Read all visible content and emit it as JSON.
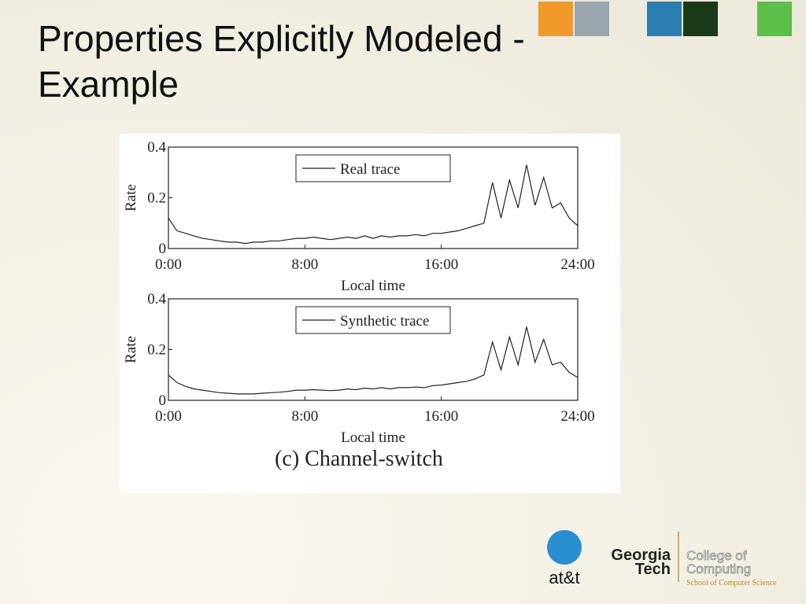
{
  "title": "Properties Explicitly Modeled - Example",
  "figure_caption": "(c) Channel-switch",
  "logos": {
    "att": "at&t",
    "gt_line1": "Georgia",
    "gt_line2": "Tech",
    "coc_line1": "College of",
    "coc_line2": "Computing",
    "scs": "School of Computer Science"
  },
  "chart_data": [
    {
      "type": "line",
      "xlabel": "Local time",
      "ylabel": "Rate",
      "legend": "upper center",
      "xlim": [
        0,
        24
      ],
      "ylim": [
        0,
        0.4
      ],
      "xticks": [
        {
          "value": 0,
          "label": "0:00"
        },
        {
          "value": 8,
          "label": "8:00"
        },
        {
          "value": 16,
          "label": "16:00"
        },
        {
          "value": 24,
          "label": "24:00"
        }
      ],
      "yticks": [
        0,
        0.2,
        0.4
      ],
      "x": [
        0,
        0.5,
        1,
        1.5,
        2,
        2.5,
        3,
        3.5,
        4,
        4.5,
        5,
        5.5,
        6,
        6.5,
        7,
        7.5,
        8,
        8.5,
        9,
        9.5,
        10,
        10.5,
        11,
        11.5,
        12,
        12.5,
        13,
        13.5,
        14,
        14.5,
        15,
        15.5,
        16,
        16.5,
        17,
        17.5,
        18,
        18.5,
        19,
        19.5,
        20,
        20.5,
        21,
        21.5,
        22,
        22.5,
        23,
        23.5,
        24
      ],
      "series": [
        {
          "name": "Real trace",
          "color": "#222222",
          "values": [
            0.12,
            0.07,
            0.06,
            0.05,
            0.04,
            0.035,
            0.03,
            0.025,
            0.025,
            0.02,
            0.025,
            0.025,
            0.03,
            0.03,
            0.035,
            0.04,
            0.04,
            0.045,
            0.04,
            0.035,
            0.04,
            0.045,
            0.04,
            0.05,
            0.04,
            0.05,
            0.045,
            0.05,
            0.05,
            0.055,
            0.05,
            0.06,
            0.06,
            0.065,
            0.07,
            0.08,
            0.09,
            0.1,
            0.26,
            0.12,
            0.27,
            0.16,
            0.33,
            0.17,
            0.28,
            0.16,
            0.18,
            0.12,
            0.09
          ]
        }
      ]
    },
    {
      "type": "line",
      "xlabel": "Local time",
      "ylabel": "Rate",
      "legend": "upper center",
      "xlim": [
        0,
        24
      ],
      "ylim": [
        0,
        0.4
      ],
      "xticks": [
        {
          "value": 0,
          "label": "0:00"
        },
        {
          "value": 8,
          "label": "8:00"
        },
        {
          "value": 16,
          "label": "16:00"
        },
        {
          "value": 24,
          "label": "24:00"
        }
      ],
      "yticks": [
        0,
        0.2,
        0.4
      ],
      "x": [
        0,
        0.5,
        1,
        1.5,
        2,
        2.5,
        3,
        3.5,
        4,
        4.5,
        5,
        5.5,
        6,
        6.5,
        7,
        7.5,
        8,
        8.5,
        9,
        9.5,
        10,
        10.5,
        11,
        11.5,
        12,
        12.5,
        13,
        13.5,
        14,
        14.5,
        15,
        15.5,
        16,
        16.5,
        17,
        17.5,
        18,
        18.5,
        19,
        19.5,
        20,
        20.5,
        21,
        21.5,
        22,
        22.5,
        23,
        23.5,
        24
      ],
      "series": [
        {
          "name": "Synthetic trace",
          "color": "#222222",
          "values": [
            0.1,
            0.07,
            0.055,
            0.045,
            0.04,
            0.035,
            0.03,
            0.028,
            0.025,
            0.025,
            0.025,
            0.028,
            0.03,
            0.032,
            0.035,
            0.04,
            0.04,
            0.042,
            0.04,
            0.038,
            0.04,
            0.045,
            0.042,
            0.048,
            0.045,
            0.05,
            0.045,
            0.05,
            0.05,
            0.052,
            0.05,
            0.058,
            0.06,
            0.065,
            0.07,
            0.075,
            0.085,
            0.1,
            0.23,
            0.12,
            0.25,
            0.14,
            0.29,
            0.15,
            0.24,
            0.14,
            0.15,
            0.11,
            0.09
          ]
        }
      ]
    }
  ]
}
